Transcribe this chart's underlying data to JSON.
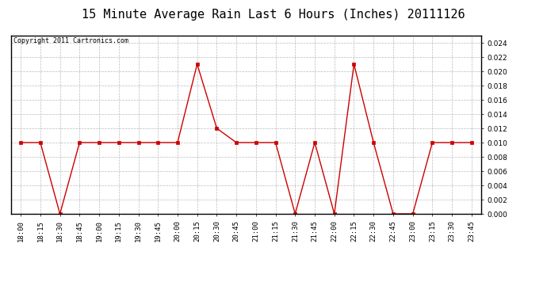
{
  "title": "15 Minute Average Rain Last 6 Hours (Inches) 20111126",
  "copyright": "Copyright 2011 Cartronics.com",
  "x_labels": [
    "18:00",
    "18:15",
    "18:30",
    "18:45",
    "19:00",
    "19:15",
    "19:30",
    "19:45",
    "20:00",
    "20:15",
    "20:30",
    "20:45",
    "21:00",
    "21:15",
    "21:30",
    "21:45",
    "22:00",
    "22:15",
    "22:30",
    "22:45",
    "23:00",
    "23:15",
    "23:30",
    "23:45"
  ],
  "y_values": [
    0.01,
    0.01,
    0.0,
    0.01,
    0.01,
    0.01,
    0.01,
    0.01,
    0.01,
    0.021,
    0.012,
    0.01,
    0.01,
    0.01,
    0.0,
    0.01,
    0.0,
    0.021,
    0.01,
    0.0,
    0.0,
    0.01,
    0.01,
    0.01
  ],
  "line_color": "#cc0000",
  "marker": "s",
  "marker_size": 2.5,
  "ylim": [
    0.0,
    0.025
  ],
  "yticks": [
    0.0,
    0.002,
    0.004,
    0.006,
    0.008,
    0.01,
    0.012,
    0.014,
    0.016,
    0.018,
    0.02,
    0.022,
    0.024
  ],
  "bg_color": "#ffffff",
  "grid_color": "#bbbbbb",
  "title_fontsize": 11,
  "copyright_fontsize": 6,
  "tick_fontsize": 6.5
}
